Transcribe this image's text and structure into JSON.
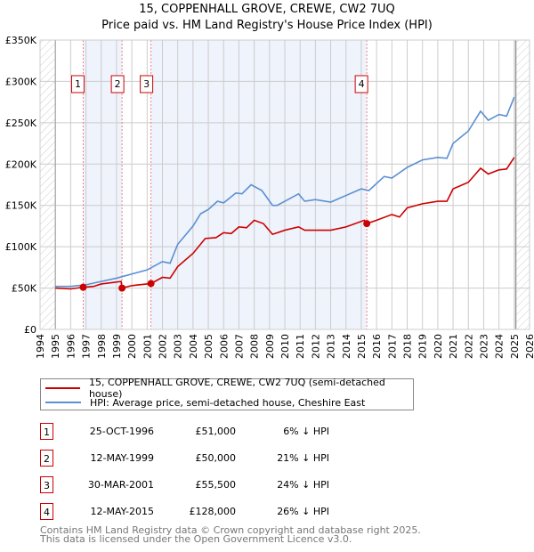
{
  "title_line1": "15, COPPENHALL GROVE, CREWE, CW2 7UQ",
  "title_line2": "Price paid vs. HM Land Registry's House Price Index (HPI)",
  "colors": {
    "property": "#cc0000",
    "hpi": "#5b8fd1",
    "shade": "#eef3fc",
    "grid": "#cccccc"
  },
  "chart_data": {
    "type": "line",
    "title": "Price paid vs. HM Land Registry's House Price Index (HPI)",
    "xlim": [
      1994,
      2026
    ],
    "ylim": [
      0,
      350000
    ],
    "x_ticks": [
      "1994",
      "1995",
      "1996",
      "1997",
      "1998",
      "1999",
      "2000",
      "2001",
      "2002",
      "2003",
      "2004",
      "2005",
      "2006",
      "2007",
      "2008",
      "2009",
      "2010",
      "2011",
      "2012",
      "2013",
      "2014",
      "2015",
      "2016",
      "2017",
      "2018",
      "2019",
      "2020",
      "2021",
      "2022",
      "2023",
      "2024",
      "2025",
      "2026"
    ],
    "y_ticks": [
      {
        "v": 0,
        "label": "£0"
      },
      {
        "v": 50000,
        "label": "£50K"
      },
      {
        "v": 100000,
        "label": "£100K"
      },
      {
        "v": 150000,
        "label": "£150K"
      },
      {
        "v": 200000,
        "label": "£200K"
      },
      {
        "v": 250000,
        "label": "£250K"
      },
      {
        "v": 300000,
        "label": "£300K"
      },
      {
        "v": 350000,
        "label": "£350K"
      }
    ],
    "grid": true,
    "data_range": [
      1995,
      2025.1
    ],
    "series": [
      {
        "name": "15, COPPENHALL GROVE, CREWE, CW2 7UQ (semi-detached house)",
        "color": "#cc0000",
        "x": [
          1995,
          1996,
          1996.82,
          1997.5,
          1998,
          1999.3,
          1999.36,
          2000,
          2001.25,
          2002,
          2002.5,
          2003,
          2004,
          2004.8,
          2005.5,
          2006,
          2006.5,
          2007,
          2007.5,
          2008,
          2008.6,
          2009.2,
          2010,
          2010.9,
          2011.3,
          2012,
          2013,
          2014,
          2015.2,
          2015.36,
          2016,
          2017,
          2017.5,
          2018,
          2019,
          2020,
          2020.6,
          2021,
          2022,
          2022.8,
          2023.3,
          2024,
          2024.5,
          2025
        ],
        "y": [
          50000,
          49000,
          51000,
          52000,
          55000,
          58000,
          50000,
          53000,
          55500,
          63000,
          62000,
          76000,
          92000,
          110000,
          111000,
          117000,
          116000,
          124000,
          123000,
          132000,
          128000,
          115000,
          120000,
          124000,
          120000,
          120000,
          120000,
          124000,
          132000,
          128000,
          132000,
          139000,
          136000,
          147000,
          152000,
          155000,
          155000,
          170000,
          178000,
          195000,
          188000,
          193000,
          194000,
          208000
        ]
      },
      {
        "name": "HPI: Average price, semi-detached house, Cheshire East",
        "color": "#5b8fd1",
        "x": [
          1995,
          1996,
          1997,
          1998,
          1999,
          2000,
          2001,
          2002,
          2002.5,
          2003,
          2004,
          2004.5,
          2005,
          2005.6,
          2006,
          2006.8,
          2007.2,
          2007.8,
          2008.5,
          2009.2,
          2009.5,
          2010,
          2010.9,
          2011.3,
          2012,
          2013,
          2014,
          2015,
          2015.5,
          2016.5,
          2017,
          2018,
          2019,
          2020,
          2020.6,
          2021,
          2022,
          2022.8,
          2023.3,
          2024,
          2024.5,
          2025
        ],
        "y": [
          52000,
          52000,
          54000,
          58000,
          62000,
          67000,
          72000,
          82000,
          80000,
          103000,
          125000,
          140000,
          145000,
          155000,
          153000,
          165000,
          164000,
          175000,
          168000,
          150000,
          150000,
          155000,
          164000,
          155000,
          157000,
          154000,
          162000,
          170000,
          168000,
          185000,
          183000,
          196000,
          205000,
          208000,
          207000,
          225000,
          240000,
          264000,
          253000,
          260000,
          258000,
          281000
        ]
      }
    ],
    "sales": [
      {
        "n": "1",
        "x": 1996.82,
        "date": "25-OCT-1996",
        "price": 51000,
        "price_label": "£51,000",
        "hpi": "6% ↓ HPI"
      },
      {
        "n": "2",
        "x": 1999.36,
        "date": "12-MAY-1999",
        "price": 50000,
        "price_label": "£50,000",
        "hpi": "21% ↓ HPI"
      },
      {
        "n": "3",
        "x": 2001.25,
        "date": "30-MAR-2001",
        "price": 55500,
        "price_label": "£55,500",
        "hpi": "24% ↓ HPI"
      },
      {
        "n": "4",
        "x": 2015.36,
        "date": "12-MAY-2015",
        "price": 128000,
        "price_label": "£128,000",
        "hpi": "26% ↓ HPI"
      }
    ],
    "legend_position": "below"
  },
  "legend": {
    "property": "15, COPPENHALL GROVE, CREWE, CW2 7UQ (semi-detached house)",
    "hpi": "HPI: Average price, semi-detached house, Cheshire East"
  },
  "footer": {
    "line1": "Contains HM Land Registry data © Crown copyright and database right 2025.",
    "line2": "This data is licensed under the Open Government Licence v3.0."
  }
}
